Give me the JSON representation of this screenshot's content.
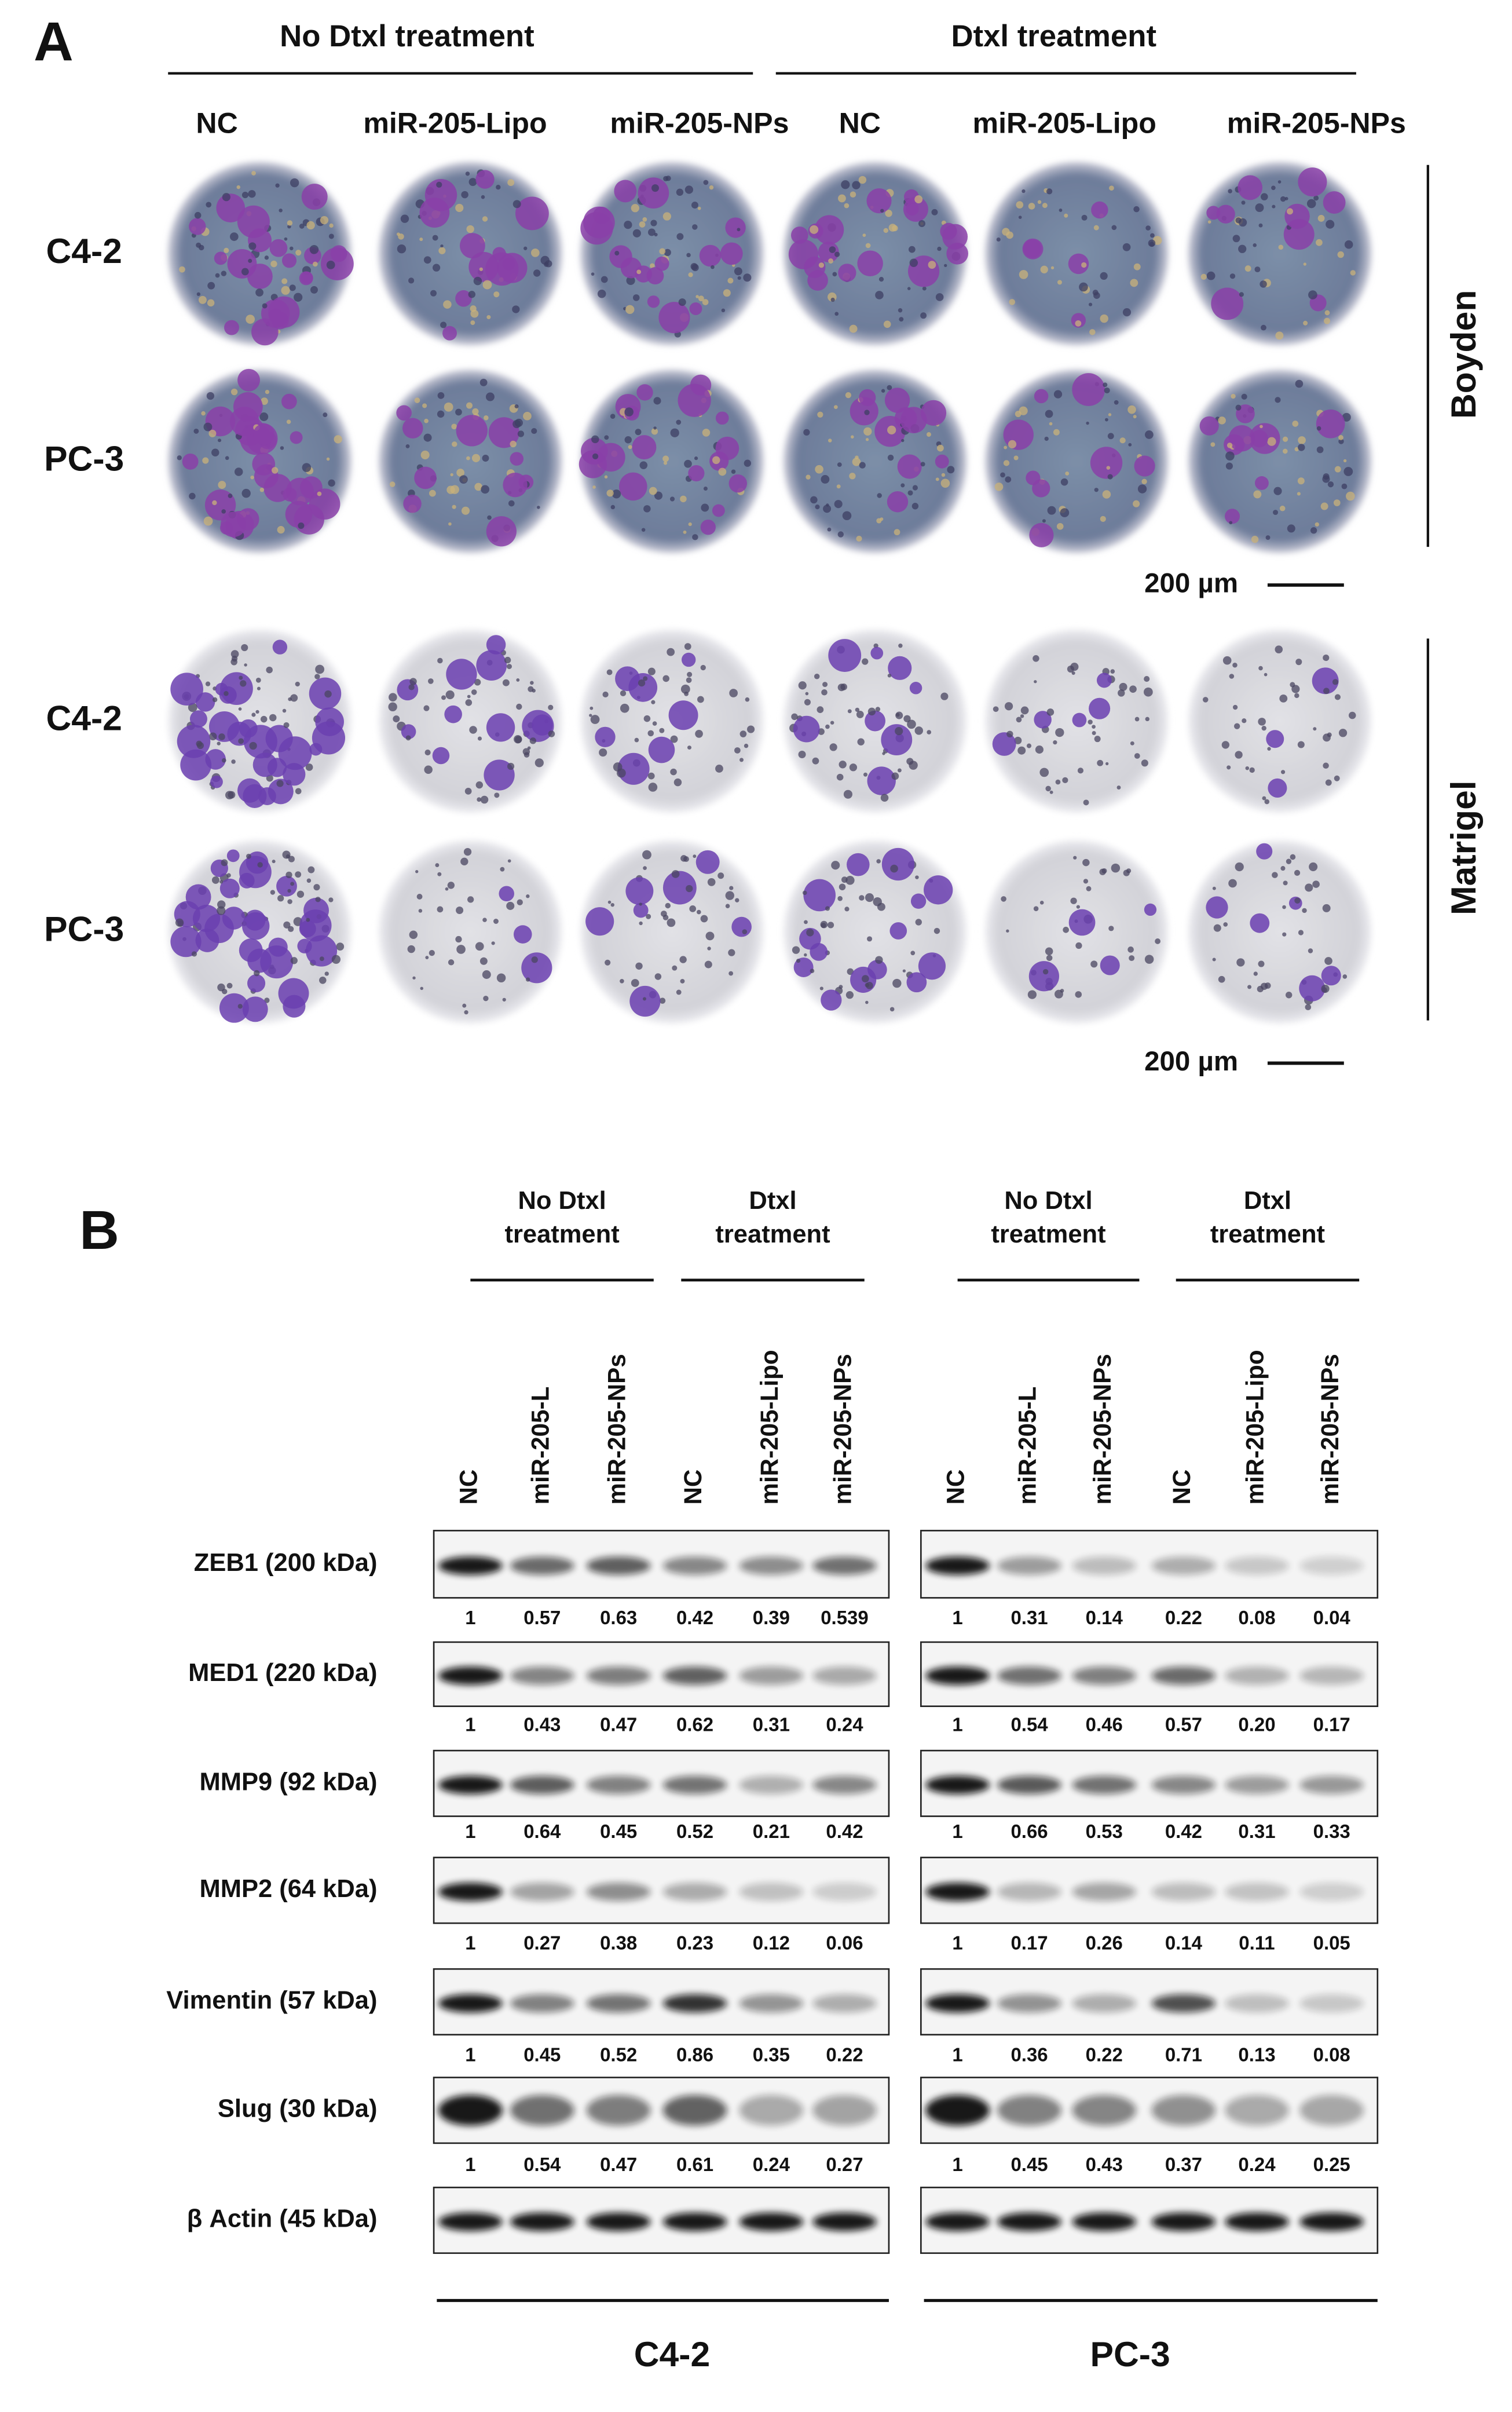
{
  "panel_a": {
    "label": "A",
    "groups": [
      "No Dtxl treatment",
      "Dtxl treatment"
    ],
    "columns": [
      "NC",
      "miR-205-Lipo",
      "miR-205-NPs",
      "NC",
      "miR-205-Lipo",
      "miR-205-NPs"
    ],
    "rows": [
      "C4-2",
      "PC-3",
      "C4-2",
      "PC-3"
    ],
    "sections": [
      "Boyden",
      "Matrigel"
    ],
    "scale_bars": [
      "200 µm",
      "200 µm"
    ]
  },
  "panel_b": {
    "label": "B",
    "proteins": [
      "ZEB1 (200 kDa)",
      "MED1 (220 kDa)",
      "MMP9 (92 kDa)",
      "MMP2 (64 kDa)",
      "Vimentin (57 kDa)",
      "Slug  (30 kDa)",
      "β Actin (45 kDa)"
    ],
    "blots": [
      {
        "cell_line": "C4-2",
        "groups": [
          [
            "No Dtxl",
            "treatment"
          ],
          [
            "Dtxl",
            "treatment"
          ]
        ],
        "lanes": [
          "NC",
          "miR-205-L",
          "miR-205-NPs",
          "NC",
          "miR-205-Lipo",
          "miR-205-NPs"
        ],
        "quantification": [
          [
            "1",
            "0.57",
            "0.63",
            "0.42",
            "0.39",
            "0.539"
          ],
          [
            "1",
            "0.43",
            "0.47",
            "0.62",
            "0.31",
            "0.24"
          ],
          [
            "1",
            "0.64",
            "0.45",
            "0.52",
            "0.21",
            "0.42"
          ],
          [
            "1",
            "0.27",
            "0.38",
            "0.23",
            "0.12",
            "0.06"
          ],
          [
            "1",
            "0.45",
            "0.52",
            "0.86",
            "0.35",
            "0.22"
          ],
          [
            "1",
            "0.54",
            "0.47",
            "0.61",
            "0.24",
            "0.27"
          ]
        ]
      },
      {
        "cell_line": "PC-3",
        "groups": [
          [
            "No Dtxl",
            "treatment"
          ],
          [
            "Dtxl",
            "treatment"
          ]
        ],
        "lanes": [
          "NC",
          "miR-205-L",
          "miR-205-NPs",
          "NC",
          "miR-205-Lipo",
          "miR-205-NPs"
        ],
        "quantification": [
          [
            "1",
            "0.31",
            "0.14",
            "0.22",
            "0.08",
            "0.04"
          ],
          [
            "1",
            "0.54",
            "0.46",
            "0.57",
            "0.20",
            "0.17"
          ],
          [
            "1",
            "0.66",
            "0.53",
            "0.42",
            "0.31",
            "0.33"
          ],
          [
            "1",
            "0.17",
            "0.26",
            "0.14",
            "0.11",
            "0.05"
          ],
          [
            "1",
            "0.36",
            "0.22",
            "0.71",
            "0.13",
            "0.08"
          ],
          [
            "1",
            "0.45",
            "0.43",
            "0.37",
            "0.24",
            "0.25"
          ]
        ]
      }
    ]
  }
}
